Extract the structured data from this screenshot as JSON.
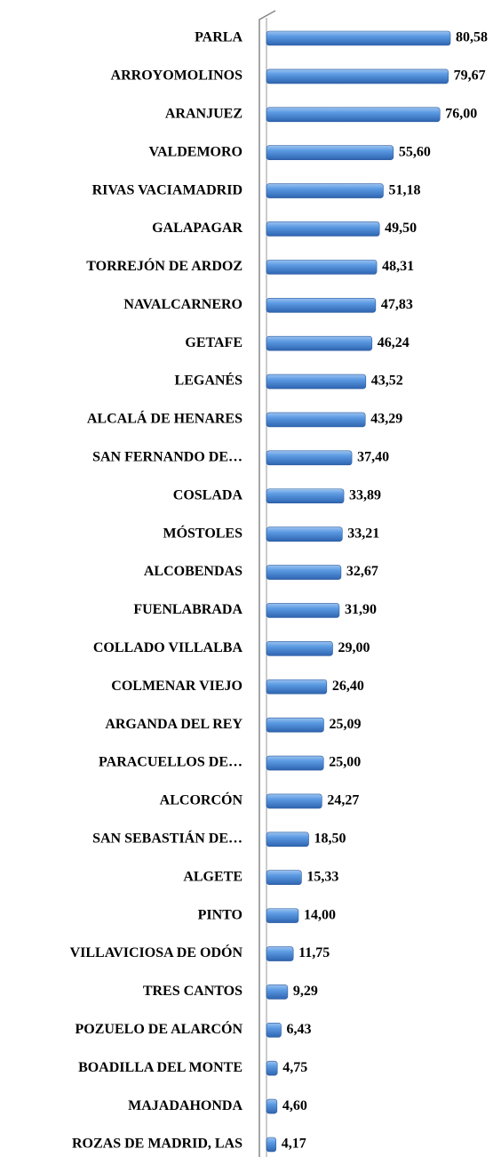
{
  "chart_data": {
    "type": "bar",
    "orientation": "horizontal",
    "color": "#4f8fd8",
    "categories": [
      "PARLA",
      "ARROYOMOLINOS",
      "ARANJUEZ",
      "VALDEMORO",
      "RIVAS VACIAMADRID",
      "GALAPAGAR",
      "TORREJÓN DE ARDOZ",
      "NAVALCARNERO",
      "GETAFE",
      "LEGANÉS",
      "ALCALÁ DE HENARES",
      "SAN FERNANDO DE…",
      "COSLADA",
      "MÓSTOLES",
      "ALCOBENDAS",
      "FUENLABRADA",
      "COLLADO VILLALBA",
      "COLMENAR VIEJO",
      "ARGANDA DEL REY",
      "PARACUELLOS DE…",
      "ALCORCÓN",
      "SAN SEBASTIÁN DE…",
      "ALGETE",
      "PINTO",
      "VILLAVICIOSA DE ODÓN",
      "TRES CANTOS",
      "POZUELO DE ALARCÓN",
      "BOADILLA DEL MONTE",
      "MAJADAHONDA",
      "ROZAS DE MADRID, LAS"
    ],
    "values": [
      80.58,
      79.67,
      76.0,
      55.6,
      51.18,
      49.5,
      48.31,
      47.83,
      46.24,
      43.52,
      43.29,
      37.4,
      33.89,
      33.21,
      32.67,
      31.9,
      29.0,
      26.4,
      25.09,
      25.0,
      24.27,
      18.5,
      15.33,
      14.0,
      11.75,
      9.29,
      6.43,
      4.75,
      4.6,
      4.17
    ],
    "value_labels": [
      "80,58",
      "79,67",
      "76,00",
      "55,60",
      "51,18",
      "49,50",
      "48,31",
      "47,83",
      "46,24",
      "43,52",
      "43,29",
      "37,40",
      "33,89",
      "33,21",
      "32,67",
      "31,90",
      "29,00",
      "26,40",
      "25,09",
      "25,00",
      "24,27",
      "18,50",
      "15,33",
      "14,00",
      "11,75",
      "9,29",
      "6,43",
      "4,75",
      "4,60",
      "4,17"
    ]
  }
}
